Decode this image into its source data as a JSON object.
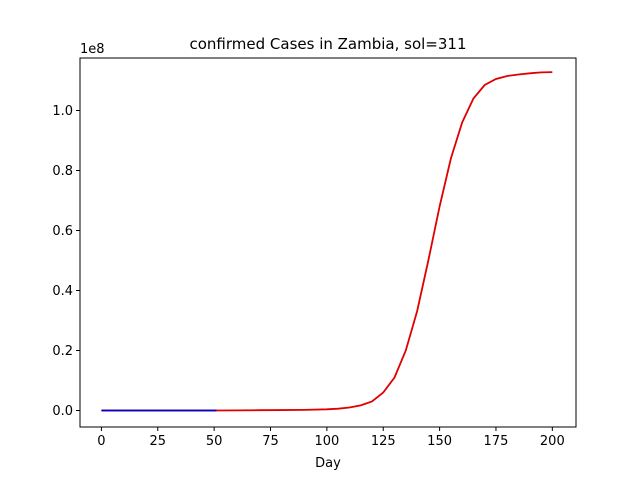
{
  "chart_data": {
    "type": "line",
    "title": "confirmed Cases in Zambia, sol=311",
    "xlabel": "Day",
    "ylabel": "",
    "y_offset_label": "1e8",
    "xlim": [
      -9.5,
      210.5
    ],
    "ylim": [
      -0.055,
      1.175
    ],
    "x_ticks": [
      0,
      25,
      50,
      75,
      100,
      125,
      150,
      175,
      200
    ],
    "x_tick_labels": [
      "0",
      "25",
      "50",
      "75",
      "100",
      "125",
      "150",
      "175",
      "200"
    ],
    "y_ticks": [
      0.0,
      0.2,
      0.4,
      0.6,
      0.8,
      1.0
    ],
    "y_tick_labels": [
      "0.0",
      "0.2",
      "0.4",
      "0.6",
      "0.8",
      "1.0"
    ],
    "grid": false,
    "series": [
      {
        "color": "#e00000",
        "x": [
          0,
          25,
          50,
          60,
          70,
          80,
          90,
          100,
          105,
          110,
          115,
          120,
          125,
          130,
          135,
          140,
          145,
          150,
          155,
          160,
          165,
          170,
          175,
          180,
          185,
          190,
          195,
          200
        ],
        "y": [
          0.0,
          0.0,
          0.0,
          0.0005,
          0.001,
          0.0015,
          0.002,
          0.004,
          0.006,
          0.01,
          0.017,
          0.03,
          0.06,
          0.11,
          0.2,
          0.33,
          0.5,
          0.68,
          0.84,
          0.96,
          1.04,
          1.085,
          1.105,
          1.115,
          1.12,
          1.124,
          1.127,
          1.128
        ]
      },
      {
        "color": "#0000cc",
        "x": [
          0,
          10,
          20,
          30,
          40,
          51
        ],
        "y": [
          0.0,
          0.0,
          0.0,
          0.0,
          0.0,
          0.0
        ]
      }
    ]
  }
}
